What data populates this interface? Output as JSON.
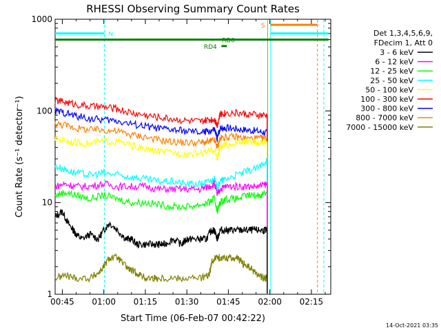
{
  "chart_data": {
    "type": "line",
    "title": "RHESSI Observing Summary Count Rates",
    "xlabel": "Start Time (06-Feb-07 00:42:22)",
    "ylabel": "Count Rate (s⁻¹ detector⁻¹)",
    "y_scale": "log",
    "ylim": [
      1,
      1000
    ],
    "xlim_minutes": [
      42.4,
      142.0
    ],
    "x_ticks": [
      {
        "minutes": 45,
        "label": "00:45"
      },
      {
        "minutes": 60,
        "label": "01:00"
      },
      {
        "minutes": 75,
        "label": "01:15"
      },
      {
        "minutes": 90,
        "label": "01:30"
      },
      {
        "minutes": 105,
        "label": "01:45"
      },
      {
        "minutes": 120,
        "label": "02:00"
      },
      {
        "minutes": 135,
        "label": "02:15"
      }
    ],
    "y_ticks": [
      {
        "value": 1,
        "label": "1"
      },
      {
        "value": 10,
        "label": "10"
      },
      {
        "value": 100,
        "label": "100"
      },
      {
        "value": 1000,
        "label": "1000"
      }
    ],
    "legend_title": [
      "Det 1,3,4,5,6,9,",
      "FDecim 1, Att 0"
    ],
    "legend_position": "right",
    "timestamp": "14-Oct-2021 03:35",
    "grid": false,
    "data_end_minutes": 119.0,
    "series": [
      {
        "name": "3 - 6 keV",
        "color": "#000000",
        "x": [
          42.4,
          45,
          47,
          49,
          50,
          52,
          55,
          58,
          60,
          62,
          65,
          68,
          70,
          72,
          75,
          78,
          80,
          82,
          85,
          88,
          90,
          92,
          95,
          97,
          99,
          100,
          101,
          102,
          104,
          106,
          108,
          110,
          112,
          114,
          116,
          118,
          119
        ],
        "y": [
          7,
          8,
          6,
          5,
          4.5,
          4,
          4.5,
          4,
          5,
          6,
          5,
          4,
          4,
          3.5,
          3.5,
          3.5,
          3.5,
          3.5,
          4,
          3.5,
          4,
          4,
          4,
          4,
          5,
          5,
          4,
          5,
          5,
          5,
          5,
          5,
          5,
          5,
          5,
          5,
          5
        ]
      },
      {
        "name": "6 - 12 keV",
        "color": "#ff00ff",
        "x": [
          42.4,
          46,
          50,
          55,
          60,
          65,
          70,
          75,
          80,
          85,
          90,
          95,
          98,
          100,
          101,
          102,
          104,
          108,
          112,
          116,
          119
        ],
        "y": [
          15,
          16,
          15,
          15,
          16,
          15,
          15,
          15,
          14,
          14,
          14,
          14,
          15,
          16,
          12,
          14,
          15,
          15,
          15,
          15,
          16
        ]
      },
      {
        "name": "12 - 25 keV",
        "color": "#00ff00",
        "x": [
          42.4,
          46,
          50,
          55,
          60,
          65,
          70,
          75,
          80,
          85,
          90,
          95,
          98,
          100,
          101,
          102,
          104,
          108,
          112,
          116,
          119
        ],
        "y": [
          12,
          13,
          12,
          11,
          12,
          11,
          10,
          10,
          9.5,
          9,
          9,
          9.5,
          10,
          11,
          8,
          10,
          11,
          11,
          12,
          12,
          13
        ]
      },
      {
        "name": "25 - 50 keV",
        "color": "#00ffff",
        "x": [
          42.4,
          46,
          50,
          55,
          60,
          65,
          70,
          75,
          80,
          85,
          90,
          95,
          98,
          100,
          101,
          102,
          104,
          108,
          112,
          116,
          119
        ],
        "y": [
          25,
          23,
          21,
          20,
          21,
          20,
          19,
          18,
          17,
          17,
          16,
          16,
          17,
          18,
          14,
          17,
          18,
          20,
          22,
          24,
          30
        ]
      },
      {
        "name": "50 - 100 keV",
        "color": "#ffff00",
        "x": [
          42.4,
          46,
          50,
          55,
          60,
          65,
          70,
          75,
          80,
          85,
          90,
          95,
          98,
          100,
          101,
          102,
          104,
          108,
          112,
          116,
          119
        ],
        "y": [
          50,
          48,
          45,
          44,
          47,
          46,
          42,
          38,
          36,
          35,
          34,
          35,
          36,
          38,
          30,
          40,
          42,
          45,
          46,
          45,
          45
        ]
      },
      {
        "name": "100 - 300 keV",
        "color": "#ff0000",
        "x": [
          42.4,
          46,
          50,
          55,
          60,
          65,
          70,
          75,
          80,
          85,
          90,
          95,
          98,
          100,
          101,
          102,
          104,
          108,
          112,
          116,
          119
        ],
        "y": [
          130,
          125,
          118,
          112,
          110,
          105,
          95,
          90,
          85,
          82,
          78,
          76,
          80,
          82,
          70,
          92,
          95,
          95,
          92,
          90,
          88
        ]
      },
      {
        "name": "300 - 800 keV",
        "color": "#0000ff",
        "x": [
          42.4,
          46,
          50,
          55,
          60,
          65,
          70,
          75,
          80,
          85,
          90,
          95,
          98,
          100,
          101,
          102,
          104,
          108,
          112,
          116,
          119
        ],
        "y": [
          100,
          95,
          88,
          82,
          80,
          78,
          72,
          68,
          64,
          62,
          60,
          58,
          60,
          62,
          50,
          65,
          66,
          64,
          62,
          60,
          58
        ]
      },
      {
        "name": "800 - 7000 keV",
        "color": "#ff8000",
        "x": [
          42.4,
          46,
          50,
          55,
          60,
          65,
          70,
          75,
          80,
          85,
          90,
          95,
          98,
          100,
          101,
          102,
          104,
          108,
          112,
          116,
          119
        ],
        "y": [
          72,
          70,
          65,
          62,
          62,
          60,
          55,
          52,
          48,
          46,
          45,
          45,
          46,
          48,
          40,
          50,
          52,
          52,
          50,
          50,
          50
        ]
      },
      {
        "name": "7000 - 15000 keV",
        "color": "#808000",
        "x": [
          42.4,
          46,
          50,
          55,
          58,
          60,
          62,
          65,
          68,
          70,
          72,
          75,
          78,
          80,
          85,
          90,
          95,
          98,
          99,
          100,
          102,
          105,
          108,
          110,
          112,
          114,
          116,
          118,
          119
        ],
        "y": [
          1.5,
          1.6,
          1.5,
          1.5,
          1.7,
          2,
          2.5,
          2.5,
          2,
          1.8,
          1.7,
          1.5,
          1.5,
          1.5,
          1.5,
          1.5,
          1.5,
          1.6,
          2.2,
          2.5,
          2.5,
          2.5,
          2.5,
          2.2,
          2,
          1.8,
          1.6,
          1.5,
          1.5
        ]
      }
    ],
    "flags": [
      {
        "label": "N",
        "color": "#00ffff",
        "x_start": 42.4,
        "x_end": 60.2,
        "y_value": 700,
        "label_minutes": 62.5
      },
      {
        "label": "S",
        "color": "#ff8000",
        "x_start": 120.2,
        "x_end": 137.2,
        "y_value": 870,
        "label_minutes": 117.5
      },
      {
        "label": "",
        "color": "#00ffff",
        "x_start": 120.2,
        "x_end": 141.2,
        "y_value": 700,
        "label_minutes": null
      },
      {
        "label": "RD0",
        "color": "#008000",
        "x_start": 42.4,
        "x_end": 141.2,
        "y_value": 600,
        "label_minutes": 105.0
      },
      {
        "label": "RD4",
        "color": "#008000",
        "x_start": 102.5,
        "x_end": 104.5,
        "y_value": 510,
        "label_minutes": 98.5
      }
    ],
    "vertical_markers": [
      {
        "minutes": 60.2,
        "color": "#00ffff",
        "style": "dashed"
      },
      {
        "minutes": 119.2,
        "color": "#ff8000",
        "style": "solid"
      },
      {
        "minutes": 120.3,
        "color": "#00ffff",
        "style": "solid"
      },
      {
        "minutes": 137.2,
        "color": "#ff8000",
        "style": "dashed"
      },
      {
        "minutes": 139.5,
        "color": "#00ffff",
        "style": "dashed"
      }
    ]
  }
}
